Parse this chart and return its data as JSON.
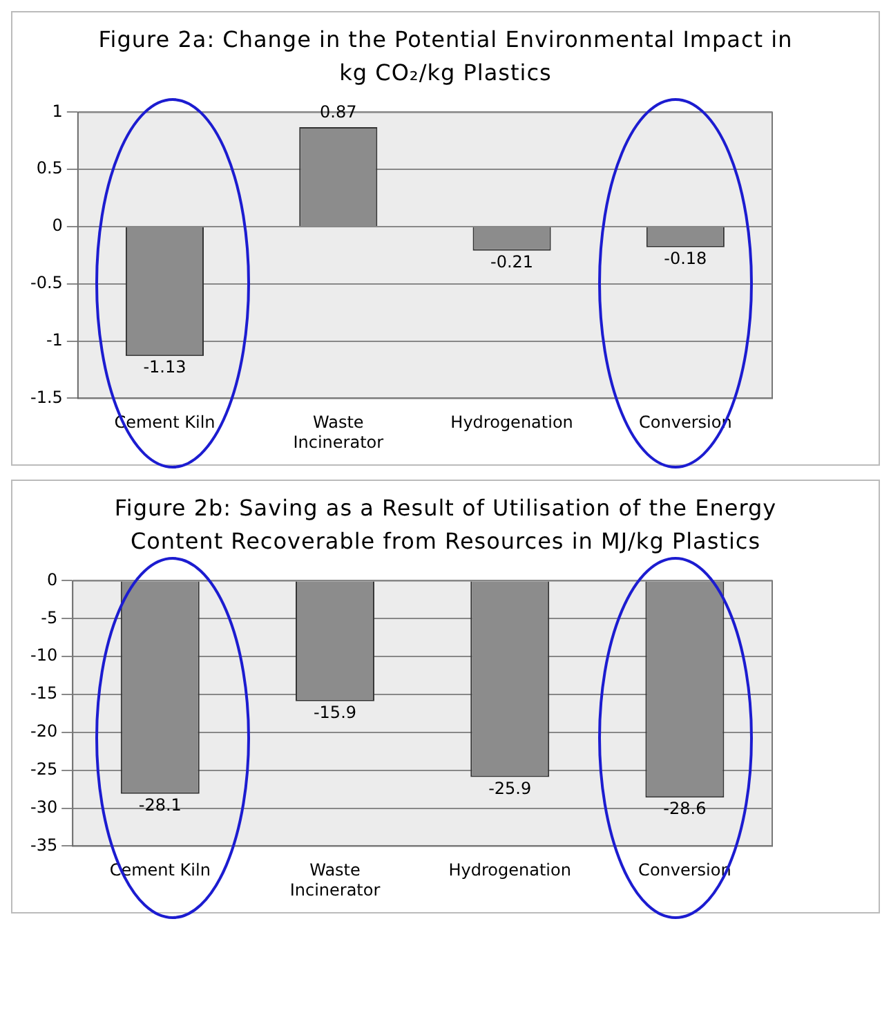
{
  "chart_data": [
    {
      "type": "bar",
      "title": "Figure 2a: Change in the Potential Environmental Impact in kg CO₂/kg Plastics",
      "categories": [
        "Cement Kiln",
        "Waste Incinerator",
        "Hydrogenation",
        "Conversion"
      ],
      "values": [
        -1.13,
        0.87,
        -0.21,
        -0.18
      ],
      "color": "#8c8c8c",
      "data_labels": true,
      "grid": "y",
      "ylim": [
        -1.5,
        1
      ],
      "yticks": [
        -1.5,
        -1,
        -0.5,
        0,
        0.5,
        1
      ]
    },
    {
      "type": "bar",
      "title": "Figure 2b: Saving as a Result of Utilisation of the Energy Content Recoverable from Resources in MJ/kg Plastics",
      "categories": [
        "Cement Kiln",
        "Waste Incinerator",
        "Hydrogenation",
        "Conversion"
      ],
      "values": [
        -28.1,
        -15.9,
        -25.9,
        -28.6
      ],
      "color": "#8c8c8c",
      "data_labels": true,
      "grid": "y",
      "ylim": [
        -35,
        0
      ],
      "yticks": [
        -35,
        -30,
        -25,
        -20,
        -15,
        -10,
        -5,
        0
      ]
    }
  ]
}
